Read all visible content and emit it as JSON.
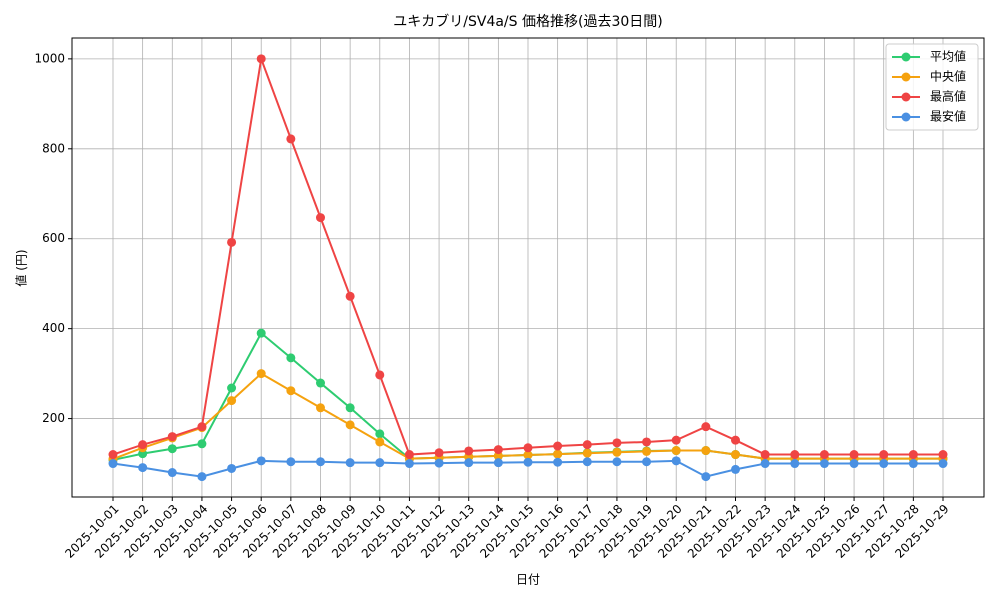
{
  "chart_data": {
    "type": "line",
    "title": "ユキカブリ/SV4a/S 価格推移(過去30日間)",
    "x_label": "日付",
    "y_label": "値 (円)",
    "categories": [
      "2025-10-01",
      "2025-10-02",
      "2025-10-03",
      "2025-10-04",
      "2025-10-05",
      "2025-10-06",
      "2025-10-07",
      "2025-10-08",
      "2025-10-09",
      "2025-10-10",
      "2025-10-11",
      "2025-10-12",
      "2025-10-13",
      "2025-10-14",
      "2025-10-15",
      "2025-10-16",
      "2025-10-17",
      "2025-10-18",
      "2025-10-19",
      "2025-10-20",
      "2025-10-21",
      "2025-10-22",
      "2025-10-23",
      "2025-10-24",
      "2025-10-25",
      "2025-10-26",
      "2025-10-27",
      "2025-10-28",
      "2025-10-29"
    ],
    "series": [
      {
        "name": "平均値",
        "color": "#2ecc71",
        "values": [
          108,
          122,
          133,
          144,
          268,
          390,
          335,
          279,
          224,
          166,
          111,
          113,
          115,
          117,
          119,
          121,
          124,
          126,
          128,
          129,
          129,
          120,
          111,
          111,
          111,
          111,
          111,
          111,
          111
        ]
      },
      {
        "name": "中央値",
        "color": "#f5a20f",
        "values": [
          110,
          135,
          157,
          180,
          240,
          300,
          262,
          224,
          186,
          148,
          111,
          113,
          115,
          117,
          119,
          121,
          123,
          125,
          127,
          129,
          129,
          120,
          111,
          111,
          111,
          111,
          111,
          111,
          111
        ]
      },
      {
        "name": "最高値",
        "color": "#ef4444",
        "values": [
          120,
          142,
          160,
          182,
          592,
          1000,
          822,
          647,
          472,
          297,
          120,
          124,
          128,
          131,
          135,
          139,
          142,
          146,
          148,
          152,
          182,
          152,
          120,
          120,
          120,
          120,
          120,
          120,
          120
        ]
      },
      {
        "name": "最安値",
        "color": "#4a90e2",
        "values": [
          100,
          91,
          80,
          71,
          89,
          106,
          104,
          104,
          102,
          102,
          100,
          101,
          102,
          102,
          103,
          103,
          104,
          104,
          104,
          106,
          71,
          87,
          100,
          100,
          100,
          100,
          100,
          100,
          100
        ]
      }
    ],
    "ylim": [
      25.6,
      1046.4
    ],
    "yticks": [
      200,
      400,
      600,
      800,
      1000
    ],
    "grid": true,
    "legend": "upper-right"
  }
}
